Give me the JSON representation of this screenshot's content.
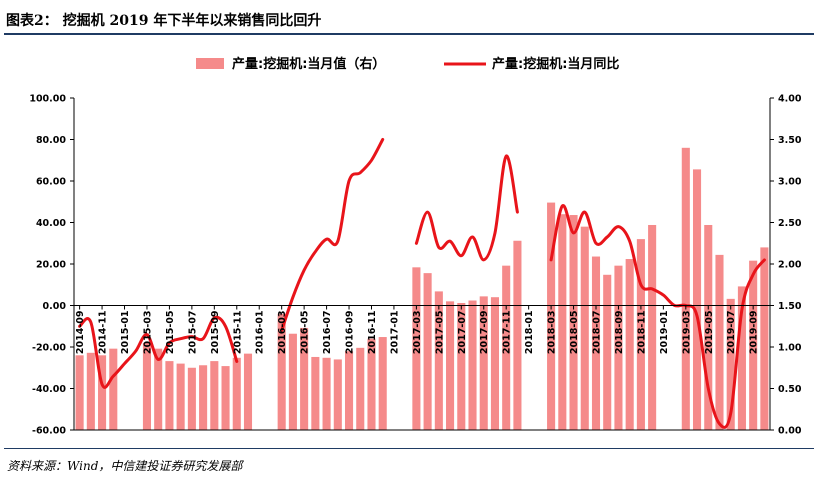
{
  "header": {
    "title": "图表2：  挖掘机 2019 年下半年以来销售同比回升"
  },
  "footer": {
    "source": "资料来源：Wind，中信建投证券研究发展部"
  },
  "colors": {
    "bar": "#f58a8a",
    "line": "#e8141a",
    "rule": "#1f3b63"
  },
  "chart_data": {
    "type": "bar+line",
    "legend_position": "top-center",
    "legend": {
      "bar": "产量:挖掘机:当月值（右）",
      "line": "产量:挖掘机:当月同比"
    },
    "y_left": {
      "min": -60,
      "max": 100,
      "step": 20,
      "ticks": [
        "-60.00",
        "-40.00",
        "-20.00",
        "0.00",
        "20.00",
        "40.00",
        "60.00",
        "80.00",
        "100.00"
      ]
    },
    "y_right": {
      "min": 0,
      "max": 4,
      "step": 0.5,
      "ticks": [
        "0.00",
        "0.50",
        "1.00",
        "1.50",
        "2.00",
        "2.50",
        "3.00",
        "3.50",
        "4.00"
      ]
    },
    "x_tick_labels": [
      "2014-09",
      "2014-11",
      "2015-01",
      "2015-03",
      "2015-05",
      "2015-07",
      "2015-09",
      "2015-11",
      "2016-01",
      "2016-03",
      "2016-05",
      "2016-07",
      "2016-09",
      "2016-11",
      "2017-01",
      "2017-03",
      "2017-05",
      "2017-07",
      "2017-09",
      "2017-11",
      "2018-01",
      "2018-03",
      "2018-05",
      "2018-07",
      "2018-09",
      "2018-11",
      "2019-01",
      "2019-03",
      "2019-05",
      "2019-07",
      "2019-09"
    ],
    "months": [
      "2014-09",
      "2014-10",
      "2014-11",
      "2014-12",
      "2015-01",
      "2015-02",
      "2015-03",
      "2015-04",
      "2015-05",
      "2015-06",
      "2015-07",
      "2015-08",
      "2015-09",
      "2015-10",
      "2015-11",
      "2015-12",
      "2016-01",
      "2016-02",
      "2016-03",
      "2016-04",
      "2016-05",
      "2016-06",
      "2016-07",
      "2016-08",
      "2016-09",
      "2016-10",
      "2016-11",
      "2016-12",
      "2017-01",
      "2017-02",
      "2017-03",
      "2017-04",
      "2017-05",
      "2017-06",
      "2017-07",
      "2017-08",
      "2017-09",
      "2017-10",
      "2017-11",
      "2017-12",
      "2018-01",
      "2018-02",
      "2018-03",
      "2018-04",
      "2018-05",
      "2018-06",
      "2018-07",
      "2018-08",
      "2018-09",
      "2018-10",
      "2018-11",
      "2018-12",
      "2019-01",
      "2019-02",
      "2019-03",
      "2019-04",
      "2019-05",
      "2019-06",
      "2019-07",
      "2019-08",
      "2019-09",
      "2019-10"
    ],
    "bar_values_right_axis": [
      0.9,
      0.93,
      0.9,
      0.98,
      null,
      null,
      1.05,
      0.98,
      0.83,
      0.8,
      0.75,
      0.78,
      0.83,
      0.77,
      0.87,
      0.92,
      null,
      null,
      1.4,
      1.16,
      1.23,
      0.88,
      0.87,
      0.85,
      0.95,
      0.99,
      1.1,
      1.12,
      null,
      null,
      1.96,
      1.89,
      1.67,
      1.55,
      1.53,
      1.56,
      1.61,
      1.6,
      1.98,
      2.28,
      null,
      null,
      2.74,
      2.6,
      2.59,
      2.45,
      2.09,
      1.87,
      1.98,
      2.06,
      2.3,
      2.47,
      null,
      null,
      3.4,
      3.14,
      2.47,
      2.11,
      1.58,
      1.73,
      2.04,
      2.2
    ],
    "line_values_left_axis": [
      -10,
      -8,
      -38,
      -34,
      -28,
      -22,
      -14,
      -26,
      -18,
      -16,
      -15,
      -16,
      -6,
      -10,
      -27,
      null,
      null,
      null,
      -12,
      4,
      17,
      26,
      32,
      31,
      60,
      64,
      70,
      80,
      null,
      null,
      30,
      45,
      28,
      31,
      24,
      33,
      22,
      35,
      72,
      45,
      null,
      null,
      22,
      48,
      35,
      45,
      30,
      33,
      38,
      31,
      10,
      8,
      5,
      0,
      0,
      -5,
      -40,
      -57,
      -52,
      -2,
      15,
      22
    ]
  }
}
